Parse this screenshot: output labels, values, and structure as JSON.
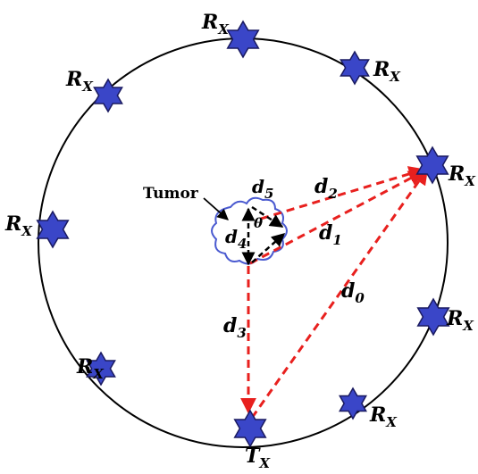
{
  "tumor_label": "Tumor",
  "theta_label": "θ",
  "distances": [
    {
      "id": "d0",
      "main": "d",
      "sub": "0"
    },
    {
      "id": "d1",
      "main": "d",
      "sub": "1"
    },
    {
      "id": "d2",
      "main": "d",
      "sub": "2"
    },
    {
      "id": "d3",
      "main": "d",
      "sub": "3"
    },
    {
      "id": "d4",
      "main": "d",
      "sub": "4"
    },
    {
      "id": "d5",
      "main": "d",
      "sub": "5"
    }
  ],
  "antennas": {
    "receiver": {
      "main": "R",
      "sub": "X"
    },
    "transmitter": {
      "main": "T",
      "sub": "X"
    }
  },
  "colors": {
    "antenna_fill": "#3a46c8",
    "antenna_stroke": "#1a1a60",
    "path_line": "#e8201e",
    "tumor_outline": "#4a5ad0",
    "inner_arrows": "#000000"
  }
}
